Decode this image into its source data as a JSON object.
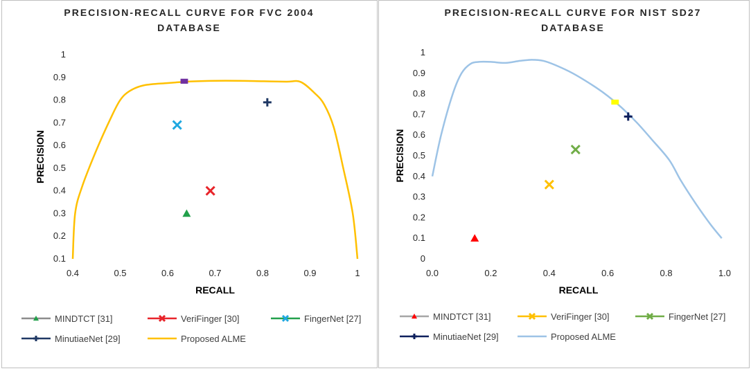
{
  "chart_data": [
    {
      "type": "line",
      "title_lines": [
        "PRECISION-RECALL CURVE FOR FVC 2004",
        "DATABASE"
      ],
      "xlabel": "RECALL",
      "ylabel": "PRECISION",
      "xlim": [
        0.4,
        1.0
      ],
      "ylim": [
        0.1,
        1.0
      ],
      "xticks": [
        0.4,
        0.5,
        0.6,
        0.7,
        0.8,
        0.9,
        1.0
      ],
      "xtick_labels": [
        "0.4",
        "0.5",
        "0.6",
        "0.7",
        "0.8",
        "0.9",
        "1"
      ],
      "yticks": [
        0.1,
        0.2,
        0.3,
        0.4,
        0.5,
        0.6,
        0.7,
        0.8,
        0.9,
        1.0
      ],
      "ytick_labels": [
        "0.1",
        "0.2",
        "0.3",
        "0.4",
        "0.5",
        "0.6",
        "0.7",
        "0.8",
        "0.9",
        "1"
      ],
      "grid": false,
      "legend_position": "bottom",
      "series": [
        {
          "name": "MINDTCT [31]",
          "kind": "point",
          "marker": "triangle",
          "color": "#22a04b",
          "line_color": "#8c8c8c",
          "x": 0.64,
          "y": 0.3
        },
        {
          "name": "VeriFinger [30]",
          "kind": "point",
          "marker": "x",
          "color": "#e8242a",
          "line_color": "#e8242a",
          "x": 0.69,
          "y": 0.4
        },
        {
          "name": "FingerNet [27]",
          "kind": "point",
          "marker": "x",
          "color": "#1fa8e0",
          "line_color": "#22a04b",
          "x": 0.62,
          "y": 0.69
        },
        {
          "name": "MinutiaeNet [29]",
          "kind": "point",
          "marker": "plus",
          "color": "#1f3864",
          "line_color": "#1f3864",
          "x": 0.81,
          "y": 0.79
        },
        {
          "name": "",
          "kind": "point",
          "marker": "square",
          "color": "#7030a0",
          "legend": false,
          "x": 0.635,
          "y": 0.883
        },
        {
          "name": "Proposed ALME",
          "kind": "line",
          "color": "#ffc000",
          "x": [
            0.4,
            0.405,
            0.42,
            0.45,
            0.48,
            0.5,
            0.52,
            0.55,
            0.6,
            0.65,
            0.7,
            0.75,
            0.8,
            0.85,
            0.88,
            0.91,
            0.93,
            0.95,
            0.97,
            0.99,
            1.0
          ],
          "y": [
            0.1,
            0.3,
            0.42,
            0.58,
            0.72,
            0.8,
            0.84,
            0.865,
            0.875,
            0.882,
            0.885,
            0.885,
            0.883,
            0.881,
            0.88,
            0.83,
            0.78,
            0.68,
            0.5,
            0.3,
            0.1
          ]
        }
      ]
    },
    {
      "type": "line",
      "title_lines": [
        "PRECISION-RECALL CURVE FOR NIST SD27",
        "DATABASE"
      ],
      "xlabel": "RECALL",
      "ylabel": "PRECISION",
      "xlim": [
        0.0,
        1.0
      ],
      "ylim": [
        0.0,
        1.0
      ],
      "xticks": [
        0.0,
        0.2,
        0.4,
        0.6,
        0.8,
        1.0
      ],
      "xtick_labels": [
        "0.0",
        "0.2",
        "0.4",
        "0.6",
        "0.8",
        "1.0"
      ],
      "yticks": [
        0,
        0.1,
        0.2,
        0.3,
        0.4,
        0.5,
        0.6,
        0.7,
        0.8,
        0.9,
        1.0
      ],
      "ytick_labels": [
        "0",
        "0.1",
        "0.2",
        "0.3",
        "0.4",
        "0.5",
        "0.6",
        "0.7",
        "0.8",
        "0.9",
        "1"
      ],
      "grid": false,
      "legend_position": "bottom",
      "series": [
        {
          "name": "MINDTCT [31]",
          "kind": "point",
          "marker": "triangle",
          "color": "#ff0000",
          "line_color": "#a6a6a6",
          "x": 0.145,
          "y": 0.1
        },
        {
          "name": "VeriFinger [30]",
          "kind": "point",
          "marker": "x",
          "color": "#ffc000",
          "line_color": "#ffc000",
          "x": 0.4,
          "y": 0.36
        },
        {
          "name": "FingerNet [27]",
          "kind": "point",
          "marker": "x",
          "color": "#70ad47",
          "line_color": "#70ad47",
          "x": 0.49,
          "y": 0.53
        },
        {
          "name": "MinutiaeNet [29]",
          "kind": "point",
          "marker": "plus",
          "color": "#0d1f5c",
          "line_color": "#0d1f5c",
          "x": 0.67,
          "y": 0.69
        },
        {
          "name": "",
          "kind": "point",
          "marker": "square",
          "color": "#ffff00",
          "legend": false,
          "x": 0.625,
          "y": 0.76
        },
        {
          "name": "Proposed ALME",
          "kind": "line",
          "color": "#9dc3e6",
          "x": [
            0.0,
            0.03,
            0.07,
            0.1,
            0.13,
            0.16,
            0.2,
            0.25,
            0.3,
            0.34,
            0.38,
            0.42,
            0.48,
            0.55,
            0.6,
            0.65,
            0.7,
            0.75,
            0.81,
            0.85,
            0.9,
            0.95,
            0.99
          ],
          "y": [
            0.4,
            0.6,
            0.8,
            0.9,
            0.945,
            0.955,
            0.955,
            0.95,
            0.96,
            0.965,
            0.96,
            0.94,
            0.9,
            0.84,
            0.79,
            0.73,
            0.66,
            0.58,
            0.48,
            0.38,
            0.27,
            0.17,
            0.1
          ]
        }
      ]
    }
  ]
}
